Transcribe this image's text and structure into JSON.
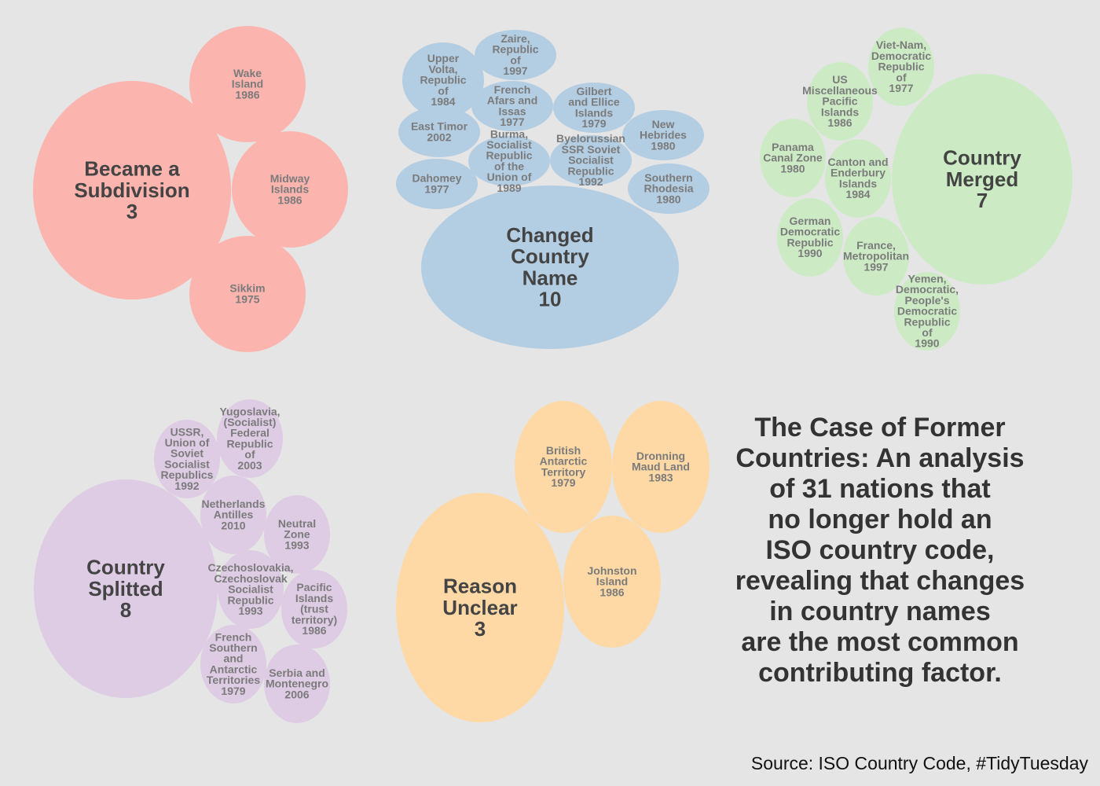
{
  "title": "The Case of Former\nCountries: An analysis\nof 31 nations that\nno longer hold an\nISO country code,\nrevealing that changes\nin country names\nare the most common\ncontributing factor.",
  "caption": "Source: ISO Country Code, #TidyTuesday",
  "chart_data": {
    "type": "bubble",
    "groups": [
      {
        "name": "Became a Subdivision",
        "count": 3,
        "color": "#fbb4ae",
        "members": [
          {
            "name": "Wake Island",
            "year": 1986
          },
          {
            "name": "Midway Islands",
            "year": 1986
          },
          {
            "name": "Sikkim",
            "year": 1975
          }
        ]
      },
      {
        "name": "Changed Country Name",
        "count": 10,
        "color": "#b3cde3",
        "members": [
          {
            "name": "Zaire, Republic of",
            "year": 1997
          },
          {
            "name": "Upper Volta, Republic of",
            "year": 1984
          },
          {
            "name": "French Afars and Issas",
            "year": 1977
          },
          {
            "name": "Gilbert and Ellice Islands",
            "year": 1979
          },
          {
            "name": "East Timor",
            "year": 2002
          },
          {
            "name": "Burma, Socialist Republic of the Union of",
            "year": 1989
          },
          {
            "name": "Byelorussian SSR Soviet Socialist Republic",
            "year": 1992
          },
          {
            "name": "New Hebrides",
            "year": 1980
          },
          {
            "name": "Dahomey",
            "year": 1977
          },
          {
            "name": "Southern Rhodesia",
            "year": 1980
          }
        ]
      },
      {
        "name": "Country Merged",
        "count": 7,
        "color": "#ccebc5",
        "members": [
          {
            "name": "Viet-Nam, Democratic Republic of",
            "year": 1977
          },
          {
            "name": "US Miscellaneous Pacific Islands",
            "year": 1986
          },
          {
            "name": "Panama Canal Zone",
            "year": 1980
          },
          {
            "name": "Canton and Enderbury Islands",
            "year": 1984
          },
          {
            "name": "German Democratic Republic",
            "year": 1990
          },
          {
            "name": "France, Metropolitan",
            "year": 1997
          },
          {
            "name": "Yemen, Democratic, People's Democratic Republic of",
            "year": 1990
          }
        ]
      },
      {
        "name": "Country Splitted",
        "count": 8,
        "color": "#decbe4",
        "members": [
          {
            "name": "Yugoslavia, (Socialist) Federal Republic of",
            "year": 2003
          },
          {
            "name": "USSR, Union of Soviet Socialist Republics",
            "year": 1992
          },
          {
            "name": "Netherlands Antilles",
            "year": 2010
          },
          {
            "name": "Neutral Zone",
            "year": 1993
          },
          {
            "name": "Czechoslovakia, Czechoslovak Socialist Republic",
            "year": 1993
          },
          {
            "name": "Pacific Islands (trust territory)",
            "year": 1986
          },
          {
            "name": "French Southern and Antarctic Territories",
            "year": 1979
          },
          {
            "name": "Serbia and Montenegro",
            "year": 2006
          }
        ]
      },
      {
        "name": "Reason Unclear",
        "count": 3,
        "color": "#fed9a6",
        "members": [
          {
            "name": "British Antarctic Territory",
            "year": 1979
          },
          {
            "name": "Dronning Maud Land",
            "year": 1983
          },
          {
            "name": "Johnston Island",
            "year": 1986
          }
        ]
      }
    ]
  }
}
